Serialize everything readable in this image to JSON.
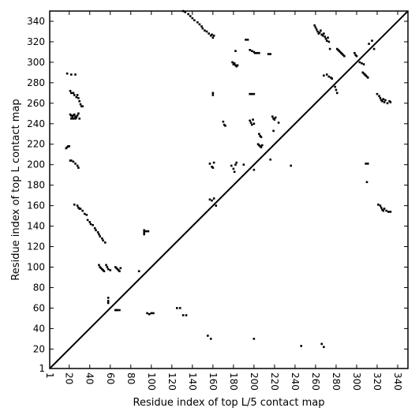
{
  "chart_data": {
    "type": "scatter",
    "title": "",
    "xlabel": "Residue index of top L/5 contact map",
    "ylabel": "Residue index of top L contact map",
    "xlim": [
      1,
      350
    ],
    "ylim": [
      1,
      350
    ],
    "xticks": [
      "1",
      "20",
      "40",
      "60",
      "80",
      "100",
      "120",
      "140",
      "160",
      "180",
      "200",
      "220",
      "240",
      "260",
      "280",
      "300",
      "320",
      "340"
    ],
    "yticks": [
      "1",
      "20",
      "40",
      "60",
      "80",
      "100",
      "120",
      "140",
      "160",
      "180",
      "200",
      "220",
      "240",
      "260",
      "280",
      "300",
      "320",
      "340"
    ],
    "tick_label_rotation_x": 90,
    "grid": false,
    "marker_color": "#000000",
    "diagonal_line": {
      "from": [
        1,
        1
      ],
      "to": [
        350,
        350
      ],
      "color": "#000000"
    },
    "series": [
      {
        "values": [
          [
            18,
            217
          ],
          [
            19,
            218
          ],
          [
            20,
            218
          ],
          [
            17,
            216
          ],
          [
            18,
            289
          ],
          [
            22,
            288
          ],
          [
            26,
            288
          ],
          [
            21,
            272
          ],
          [
            22,
            270
          ],
          [
            24,
            270
          ],
          [
            25,
            268
          ],
          [
            27,
            266
          ],
          [
            28,
            268
          ],
          [
            29,
            265
          ],
          [
            30,
            262
          ],
          [
            31,
            259
          ],
          [
            32,
            257
          ],
          [
            33,
            257
          ],
          [
            21,
            249
          ],
          [
            22,
            248
          ],
          [
            23,
            247
          ],
          [
            24,
            248
          ],
          [
            25,
            249
          ],
          [
            26,
            247
          ],
          [
            27,
            246
          ],
          [
            28,
            248
          ],
          [
            29,
            250
          ],
          [
            30,
            245
          ],
          [
            22,
            245
          ],
          [
            24,
            245
          ],
          [
            26,
            245
          ],
          [
            21,
            204
          ],
          [
            22,
            204
          ],
          [
            24,
            203
          ],
          [
            26,
            201
          ],
          [
            28,
            199
          ],
          [
            29,
            197
          ],
          [
            25,
            161
          ],
          [
            28,
            160
          ],
          [
            29,
            158
          ],
          [
            30,
            157
          ],
          [
            31,
            157
          ],
          [
            33,
            155
          ],
          [
            35,
            152
          ],
          [
            37,
            151
          ],
          [
            38,
            146
          ],
          [
            40,
            144
          ],
          [
            41,
            142
          ],
          [
            43,
            141
          ],
          [
            45,
            138
          ],
          [
            46,
            136
          ],
          [
            48,
            134
          ],
          [
            49,
            132
          ],
          [
            50,
            130
          ],
          [
            52,
            128
          ],
          [
            53,
            126
          ],
          [
            55,
            124
          ],
          [
            49,
            102
          ],
          [
            50,
            100
          ],
          [
            51,
            99
          ],
          [
            52,
            98
          ],
          [
            53,
            97
          ],
          [
            54,
            96
          ],
          [
            56,
            102
          ],
          [
            57,
            100
          ],
          [
            58,
            98
          ],
          [
            60,
            97
          ],
          [
            65,
            100
          ],
          [
            66,
            99
          ],
          [
            67,
            98
          ],
          [
            68,
            97
          ],
          [
            69,
            96
          ],
          [
            70,
            99
          ],
          [
            58,
            70
          ],
          [
            58,
            67
          ],
          [
            58,
            65
          ],
          [
            65,
            58
          ],
          [
            66,
            58
          ],
          [
            67,
            58
          ],
          [
            69,
            58
          ],
          [
            88,
            96
          ],
          [
            93,
            136
          ],
          [
            93,
            134
          ],
          [
            93,
            132
          ],
          [
            95,
            135
          ],
          [
            97,
            135
          ],
          [
            96,
            55
          ],
          [
            98,
            54
          ],
          [
            100,
            55
          ],
          [
            102,
            55
          ],
          [
            125,
            60
          ],
          [
            128,
            60
          ],
          [
            131,
            53
          ],
          [
            134,
            53
          ],
          [
            131,
            350
          ],
          [
            133,
            349
          ],
          [
            136,
            347
          ],
          [
            138,
            345
          ],
          [
            140,
            343
          ],
          [
            142,
            341
          ],
          [
            145,
            339
          ],
          [
            147,
            337
          ],
          [
            149,
            335
          ],
          [
            150,
            333
          ],
          [
            152,
            331
          ],
          [
            154,
            330
          ],
          [
            156,
            328
          ],
          [
            158,
            326
          ],
          [
            159,
            327
          ],
          [
            160,
            324
          ],
          [
            161,
            326
          ],
          [
            155,
            33
          ],
          [
            158,
            30
          ],
          [
            160,
            270
          ],
          [
            160,
            268
          ],
          [
            157,
            201
          ],
          [
            159,
            198
          ],
          [
            160,
            197
          ],
          [
            161,
            202
          ],
          [
            157,
            166
          ],
          [
            159,
            165
          ],
          [
            161,
            167
          ],
          [
            163,
            160
          ],
          [
            170,
            242
          ],
          [
            171,
            239
          ],
          [
            172,
            238
          ],
          [
            179,
            300
          ],
          [
            180,
            298
          ],
          [
            181,
            299
          ],
          [
            182,
            297
          ],
          [
            183,
            296
          ],
          [
            184,
            297
          ],
          [
            182,
            311
          ],
          [
            178,
            199
          ],
          [
            180,
            196
          ],
          [
            181,
            193
          ],
          [
            182,
            200
          ],
          [
            183,
            202
          ],
          [
            190,
            200
          ],
          [
            192,
            322
          ],
          [
            194,
            322
          ],
          [
            196,
            312
          ],
          [
            198,
            311
          ],
          [
            200,
            310
          ],
          [
            201,
            309
          ],
          [
            203,
            309
          ],
          [
            205,
            309
          ],
          [
            196,
            269
          ],
          [
            198,
            269
          ],
          [
            200,
            269
          ],
          [
            196,
            243
          ],
          [
            197,
            241
          ],
          [
            198,
            239
          ],
          [
            199,
            244
          ],
          [
            200,
            240
          ],
          [
            200,
            195
          ],
          [
            204,
            220
          ],
          [
            205,
            219
          ],
          [
            206,
            218
          ],
          [
            207,
            217
          ],
          [
            208,
            219
          ],
          [
            205,
            230
          ],
          [
            206,
            228
          ],
          [
            207,
            227
          ],
          [
            200,
            30
          ],
          [
            214,
            308
          ],
          [
            216,
            308
          ],
          [
            218,
            247
          ],
          [
            219,
            245
          ],
          [
            220,
            244
          ],
          [
            221,
            246
          ],
          [
            216,
            205
          ],
          [
            219,
            233
          ],
          [
            224,
            241
          ],
          [
            236,
            199
          ],
          [
            246,
            23
          ],
          [
            266,
            25
          ],
          [
            268,
            22
          ],
          [
            259,
            336
          ],
          [
            260,
            334
          ],
          [
            261,
            332
          ],
          [
            262,
            330
          ],
          [
            263,
            328
          ],
          [
            264,
            329
          ],
          [
            265,
            331
          ],
          [
            266,
            327
          ],
          [
            267,
            326
          ],
          [
            268,
            328
          ],
          [
            269,
            325
          ],
          [
            270,
            323
          ],
          [
            271,
            321
          ],
          [
            272,
            324
          ],
          [
            273,
            320
          ],
          [
            274,
            313
          ],
          [
            268,
            287
          ],
          [
            271,
            288
          ],
          [
            273,
            286
          ],
          [
            275,
            285
          ],
          [
            276,
            284
          ],
          [
            279,
            276
          ],
          [
            280,
            273
          ],
          [
            281,
            270
          ],
          [
            281,
            313
          ],
          [
            282,
            312
          ],
          [
            283,
            311
          ],
          [
            284,
            310
          ],
          [
            285,
            309
          ],
          [
            286,
            308
          ],
          [
            287,
            307
          ],
          [
            288,
            306
          ],
          [
            298,
            309
          ],
          [
            299,
            307
          ],
          [
            300,
            306
          ],
          [
            303,
            300
          ],
          [
            305,
            299
          ],
          [
            307,
            298
          ],
          [
            306,
            290
          ],
          [
            307,
            289
          ],
          [
            308,
            288
          ],
          [
            309,
            287
          ],
          [
            310,
            286
          ],
          [
            311,
            285
          ],
          [
            309,
            201
          ],
          [
            311,
            201
          ],
          [
            310,
            183
          ],
          [
            312,
            318
          ],
          [
            315,
            321
          ],
          [
            317,
            313
          ],
          [
            320,
            269
          ],
          [
            322,
            267
          ],
          [
            323,
            265
          ],
          [
            324,
            263
          ],
          [
            325,
            262
          ],
          [
            326,
            264
          ],
          [
            327,
            261
          ],
          [
            328,
            263
          ],
          [
            330,
            260
          ],
          [
            332,
            262
          ],
          [
            333,
            261
          ],
          [
            321,
            161
          ],
          [
            323,
            160
          ],
          [
            324,
            158
          ],
          [
            325,
            156
          ],
          [
            326,
            155
          ],
          [
            327,
            157
          ],
          [
            329,
            155
          ],
          [
            331,
            154
          ],
          [
            333,
            154
          ]
        ]
      }
    ]
  }
}
